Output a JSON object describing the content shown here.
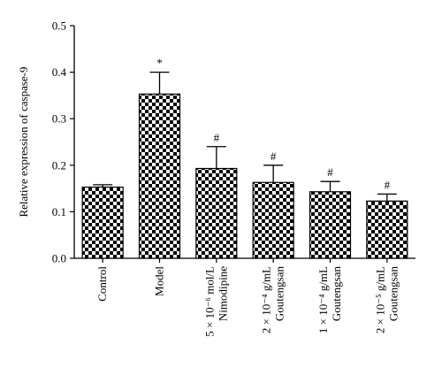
{
  "chart_data": {
    "type": "bar",
    "ylabel": "Relative expression of caspase-9",
    "ylim": [
      0,
      0.5
    ],
    "yticks": [
      "0.0",
      "0.1",
      "0.2",
      "0.3",
      "0.4",
      "0.5"
    ],
    "categories": [
      [
        "Control"
      ],
      [
        "Model"
      ],
      [
        "5 × 10⁻⁶ mol/L",
        "Nimodipine"
      ],
      [
        "2 × 10⁻⁴ g/mL",
        "Goutengsan"
      ],
      [
        "1 × 10⁻⁴ g/mL",
        "Goutengsan"
      ],
      [
        "2 × 10⁻⁵ g/mL",
        "Goutengsan"
      ]
    ],
    "values": [
      0.153,
      0.353,
      0.193,
      0.163,
      0.143,
      0.123
    ],
    "errors": [
      0.005,
      0.047,
      0.047,
      0.037,
      0.022,
      0.015
    ],
    "annotations": [
      "",
      "*",
      "#",
      "#",
      "#",
      "#"
    ],
    "bar_pattern": "checkerboard",
    "colors": {
      "ink": "#000000",
      "fill_light": "#ffffff"
    },
    "grid": false,
    "legend": "none"
  }
}
